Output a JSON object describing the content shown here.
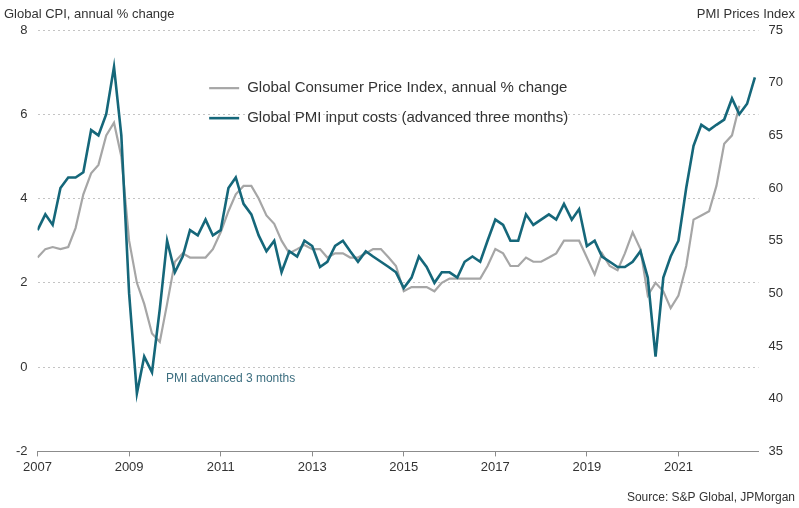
{
  "chart_data": {
    "type": "line",
    "y_label": "Global CPI, annual % change",
    "y2_label": "PMI Prices Index",
    "source": "Source: S&P Global, JPMorgan",
    "annotations": [
      "PMI advanced 3 months"
    ],
    "legend": "top",
    "grid": true,
    "xlim": [
      2007,
      2022.75
    ],
    "xticks": [
      2007,
      2009,
      2011,
      2013,
      2015,
      2017,
      2019,
      2021
    ],
    "ylim": [
      -2,
      8
    ],
    "yticks": [
      -2,
      0,
      2,
      4,
      6,
      8
    ],
    "y2lim": [
      35,
      75
    ],
    "y2ticks": [
      35,
      40,
      45,
      50,
      55,
      60,
      65,
      70,
      75
    ],
    "x": [
      2007,
      2007.17,
      2007.33,
      2007.5,
      2007.67,
      2007.83,
      2008,
      2008.17,
      2008.33,
      2008.5,
      2008.67,
      2008.83,
      2009,
      2009.17,
      2009.33,
      2009.5,
      2009.67,
      2009.83,
      2010,
      2010.17,
      2010.33,
      2010.5,
      2010.67,
      2010.83,
      2011,
      2011.17,
      2011.33,
      2011.5,
      2011.67,
      2011.83,
      2012,
      2012.17,
      2012.33,
      2012.5,
      2012.67,
      2012.83,
      2013,
      2013.17,
      2013.33,
      2013.5,
      2013.67,
      2013.83,
      2014,
      2014.17,
      2014.33,
      2014.5,
      2014.67,
      2014.83,
      2015,
      2015.17,
      2015.33,
      2015.5,
      2015.67,
      2015.83,
      2016,
      2016.17,
      2016.33,
      2016.5,
      2016.67,
      2016.83,
      2017,
      2017.17,
      2017.33,
      2017.5,
      2017.67,
      2017.83,
      2018,
      2018.17,
      2018.33,
      2018.5,
      2018.67,
      2018.83,
      2019,
      2019.17,
      2019.33,
      2019.5,
      2019.67,
      2019.83,
      2020,
      2020.17,
      2020.33,
      2020.5,
      2020.67,
      2020.83,
      2021,
      2021.17,
      2021.33,
      2021.5,
      2021.67,
      2021.83,
      2022,
      2022.17,
      2022.33,
      2022.5,
      2022.67
    ],
    "series": [
      {
        "name": "Global Consumer Price Index, annual % change",
        "color": "#a6a6a6",
        "axis": "y",
        "values": [
          2.6,
          2.8,
          2.85,
          2.8,
          2.85,
          3.3,
          4.1,
          4.6,
          4.8,
          5.5,
          5.8,
          5.0,
          3.0,
          2.0,
          1.5,
          0.8,
          0.6,
          1.5,
          2.5,
          2.7,
          2.6,
          2.6,
          2.6,
          2.8,
          3.2,
          3.7,
          4.1,
          4.3,
          4.3,
          4.0,
          3.6,
          3.4,
          3.0,
          2.7,
          2.8,
          2.9,
          2.8,
          2.8,
          2.6,
          2.7,
          2.7,
          2.6,
          2.6,
          2.7,
          2.8,
          2.8,
          2.6,
          2.4,
          1.8,
          1.9,
          1.9,
          1.9,
          1.8,
          2.0,
          2.1,
          2.1,
          2.1,
          2.1,
          2.1,
          2.4,
          2.8,
          2.7,
          2.4,
          2.4,
          2.6,
          2.5,
          2.5,
          2.6,
          2.7,
          3.0,
          3.0,
          3.0,
          2.6,
          2.2,
          2.7,
          2.4,
          2.3,
          2.7,
          3.2,
          2.8,
          1.7,
          2.0,
          1.8,
          1.4,
          1.7,
          2.4,
          3.5,
          3.6,
          3.7,
          4.3,
          5.3,
          5.5,
          6.2,
          null,
          null
        ]
      },
      {
        "name": "Global PMI input costs (advanced three months)",
        "color": "#15677a",
        "axis": "y2",
        "values": [
          56,
          57.5,
          56.5,
          60,
          61,
          61,
          61.5,
          65.5,
          65,
          67,
          71.5,
          65,
          50,
          40.5,
          44,
          42.5,
          48.5,
          55,
          52,
          53.5,
          56,
          55.5,
          57,
          55.5,
          56,
          60,
          61,
          58.5,
          57.5,
          55.5,
          54,
          55,
          52,
          54,
          53.5,
          55,
          54.5,
          52.5,
          53,
          54.5,
          55,
          54,
          53,
          54,
          53.5,
          53,
          52.5,
          52,
          50.5,
          51.5,
          53.5,
          52.5,
          51,
          52,
          52,
          51.5,
          53,
          53.5,
          53,
          55,
          57,
          56.5,
          55,
          55,
          57.5,
          56.5,
          57,
          57.5,
          57,
          58.5,
          57,
          58,
          54.5,
          55,
          53.5,
          53,
          52.5,
          52.5,
          53,
          54,
          51.5,
          44,
          51.5,
          53.5,
          55,
          60,
          64,
          66,
          65.5,
          66,
          66.5,
          68.5,
          67,
          68,
          70.5
        ]
      }
    ]
  }
}
